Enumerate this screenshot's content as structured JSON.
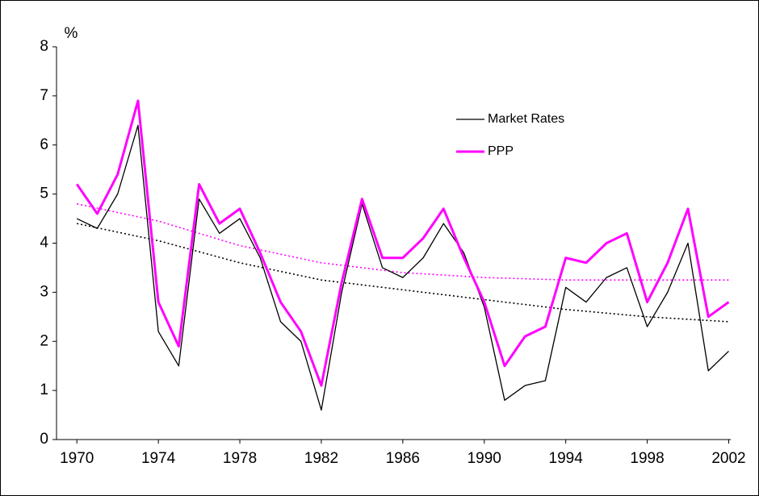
{
  "chart_data": {
    "type": "line",
    "y_label": "%",
    "x": [
      1970,
      1971,
      1972,
      1973,
      1974,
      1975,
      1976,
      1977,
      1978,
      1979,
      1980,
      1981,
      1982,
      1983,
      1984,
      1985,
      1986,
      1987,
      1988,
      1989,
      1990,
      1991,
      1992,
      1993,
      1994,
      1995,
      1996,
      1997,
      1998,
      1999,
      2000,
      2001,
      2002
    ],
    "series": [
      {
        "name": "Market Rates",
        "color": "#000000",
        "width": 1.3,
        "style": "solid",
        "values": [
          4.5,
          4.3,
          5.0,
          6.4,
          2.2,
          1.5,
          4.9,
          4.2,
          4.5,
          3.7,
          2.4,
          2.0,
          0.6,
          3.0,
          4.8,
          3.5,
          3.3,
          3.7,
          4.4,
          3.8,
          2.7,
          0.8,
          1.1,
          1.2,
          3.1,
          2.8,
          3.3,
          3.5,
          2.3,
          3.0,
          4.0,
          1.4,
          1.8
        ]
      },
      {
        "name": "PPP",
        "color": "#ff00ff",
        "width": 3,
        "style": "solid",
        "values": [
          5.2,
          4.6,
          5.4,
          6.9,
          2.8,
          1.9,
          5.2,
          4.4,
          4.7,
          3.8,
          2.8,
          2.2,
          1.1,
          3.2,
          4.9,
          3.7,
          3.7,
          4.1,
          4.7,
          3.7,
          2.8,
          1.5,
          2.1,
          2.3,
          3.7,
          3.6,
          4.0,
          4.2,
          2.8,
          3.6,
          4.7,
          2.5,
          2.8
        ]
      }
    ],
    "trendlines": [
      {
        "color": "#000000",
        "style": "dotted",
        "x": [
          1970,
          1974,
          1978,
          1982,
          1986,
          1990,
          1994,
          1998,
          2002
        ],
        "values": [
          4.4,
          4.05,
          3.6,
          3.25,
          3.05,
          2.85,
          2.65,
          2.5,
          2.4
        ]
      },
      {
        "color": "#ff00ff",
        "style": "dotted",
        "x": [
          1970,
          1974,
          1978,
          1982,
          1986,
          1990,
          1994,
          1998,
          2002
        ],
        "values": [
          4.8,
          4.45,
          3.95,
          3.6,
          3.4,
          3.3,
          3.25,
          3.25,
          3.25
        ]
      }
    ],
    "xlim": [
      1969,
      2002.1
    ],
    "xticks": [
      1970,
      1974,
      1978,
      1982,
      1986,
      1990,
      1994,
      1998,
      2002
    ],
    "ylim": [
      0,
      8
    ],
    "yticks": [
      0,
      1,
      2,
      3,
      4,
      5,
      6,
      7,
      8
    ],
    "grid": false,
    "legend": "upper-right"
  }
}
